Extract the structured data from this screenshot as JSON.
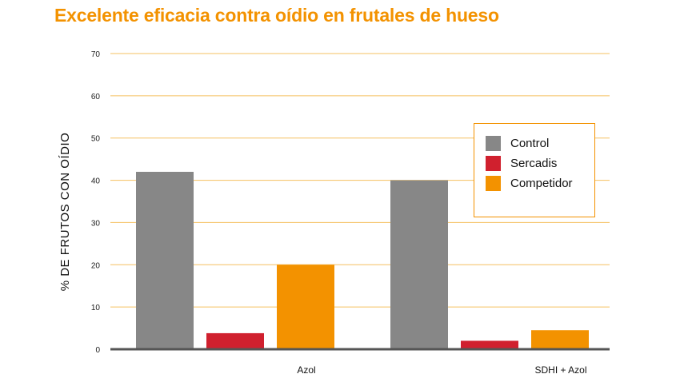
{
  "chart_data": {
    "type": "bar",
    "title": "Excelente eficacia contra oídio en frutales de hueso",
    "ylabel": "% DE FRUTOS CON OÍDIO",
    "xlabel": "",
    "ylim": [
      0,
      70
    ],
    "yticks": [
      0,
      10,
      20,
      30,
      40,
      50,
      60,
      70
    ],
    "categories": [
      "Azol",
      "SDHI + Azol"
    ],
    "series": [
      {
        "name": "Control",
        "color": "#878787",
        "values": [
          42,
          40
        ]
      },
      {
        "name": "Sercadis",
        "color": "#d0202e",
        "values": [
          3.8,
          2
        ]
      },
      {
        "name": "Competidor",
        "color": "#f39200",
        "values": [
          20,
          4.5
        ]
      }
    ],
    "grid": true,
    "grid_color": "#f5c060",
    "legend_position": "top-right"
  }
}
